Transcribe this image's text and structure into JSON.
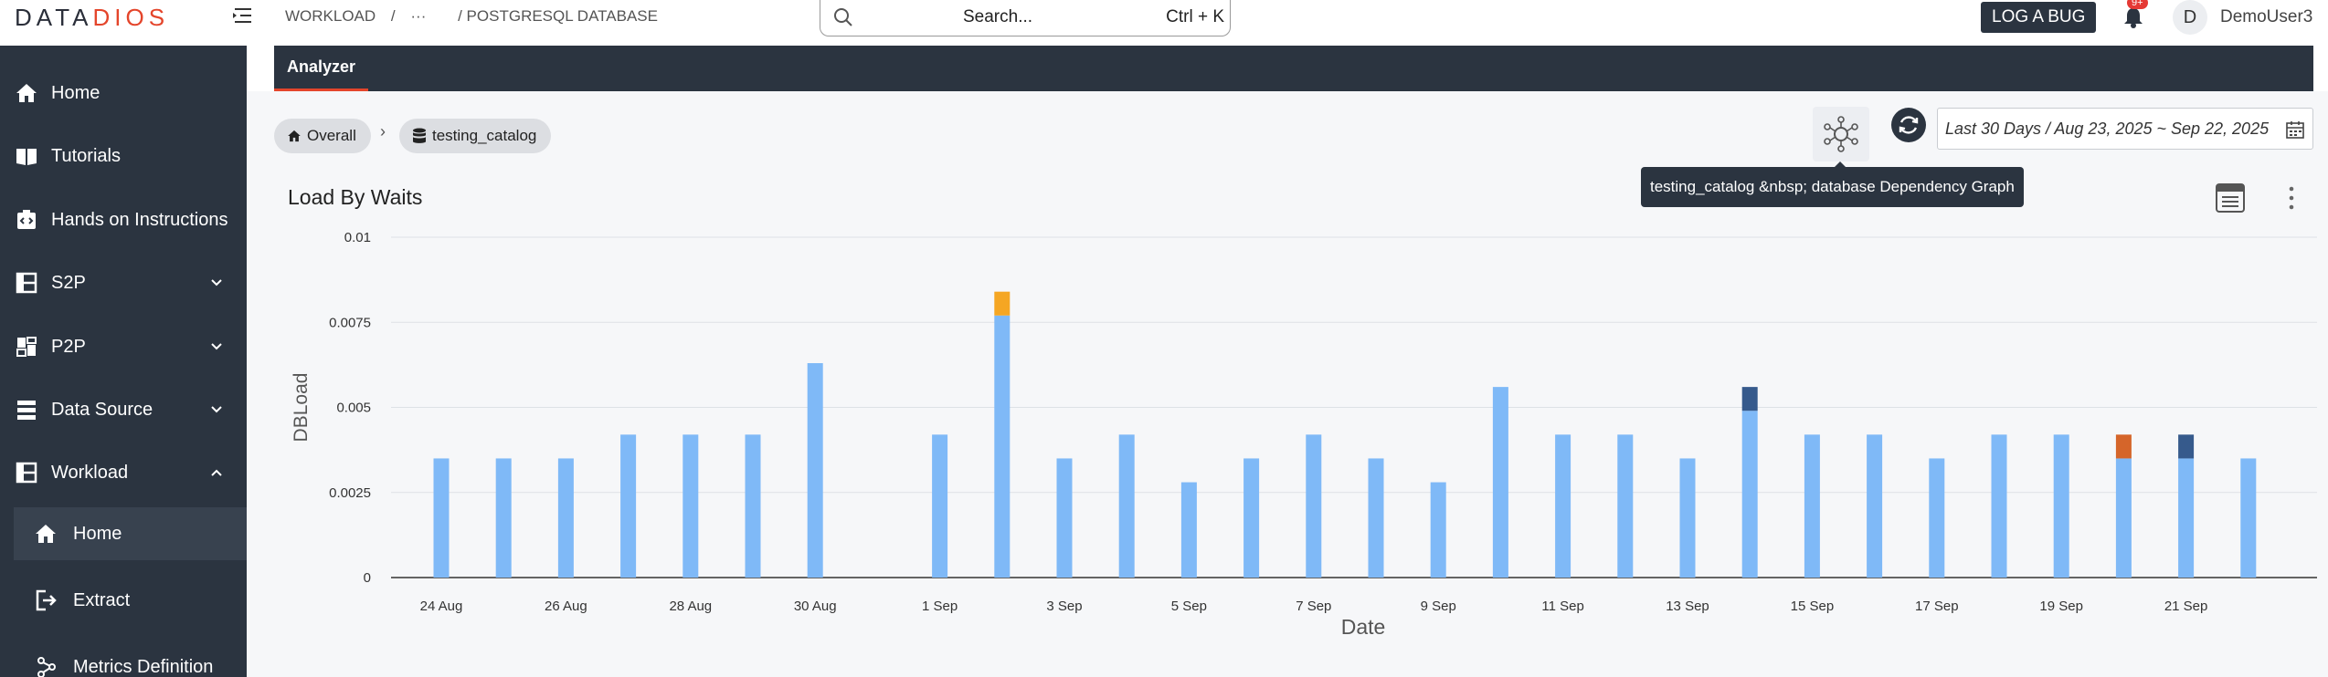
{
  "app": {
    "logo_part1": "DATA",
    "logo_part2": "DIOS",
    "breadcrumb": [
      "WORKLOAD",
      "/",
      "···",
      "/ POSTGRESQL DATABASE"
    ],
    "search_placeholder": "Search...",
    "search_shortcut": "Ctrl + K",
    "log_bug_label": "LOG A BUG",
    "notification_count": "9+",
    "avatar_initial": "D",
    "username": "DemoUser3"
  },
  "sidebar": {
    "items": [
      {
        "label": "Home",
        "icon": "home-icon"
      },
      {
        "label": "Tutorials",
        "icon": "book-icon"
      },
      {
        "label": "Hands on Instructions",
        "icon": "instructions-icon"
      },
      {
        "label": "S2P",
        "icon": "layout-icon",
        "expandable": true
      },
      {
        "label": "P2P",
        "icon": "dashboard-icon",
        "expandable": true
      },
      {
        "label": "Data Source",
        "icon": "server-icon",
        "expandable": true
      },
      {
        "label": "Workload",
        "icon": "layout-icon",
        "expandable": true,
        "expanded": true
      }
    ],
    "sub_items": [
      {
        "label": "Home",
        "icon": "home-icon",
        "active": true
      },
      {
        "label": "Extract",
        "icon": "extract-icon"
      },
      {
        "label": "Metrics Definition",
        "icon": "metrics-icon"
      }
    ]
  },
  "main": {
    "tab_label": "Analyzer",
    "chip_overall": "Overall",
    "chip_separator": "›",
    "chip_catalog": "testing_catalog",
    "date_range": "Last 30 Days / Aug 23, 2025 ~ Sep 22, 2025",
    "tooltip": "testing_catalog &nbsp; database Dependency Graph",
    "panel_title": "Load By Waits"
  },
  "colors": {
    "sidebar_bg": "#2b3440",
    "accent": "#e4452b",
    "bar_main": "#7fb9f7",
    "bar_orange": "#f5a623",
    "bar_navy": "#365a8c",
    "bar_rust": "#d5652a"
  },
  "chart_data": {
    "type": "bar",
    "stacked": true,
    "title": "",
    "xlabel": "Date",
    "ylabel": "DBLoad",
    "ylim": [
      0,
      0.01
    ],
    "yticks": [
      "0",
      "0.0025",
      "0.005",
      "0.0075",
      "0.01"
    ],
    "grid": true,
    "categories": [
      "24 Aug",
      "25 Aug",
      "26 Aug",
      "27 Aug",
      "28 Aug",
      "29 Aug",
      "30 Aug",
      "31 Aug",
      "1 Sep",
      "2 Sep",
      "3 Sep",
      "4 Sep",
      "5 Sep",
      "6 Sep",
      "7 Sep",
      "8 Sep",
      "9 Sep",
      "10 Sep",
      "11 Sep",
      "12 Sep",
      "13 Sep",
      "14 Sep",
      "15 Sep",
      "16 Sep",
      "17 Sep",
      "18 Sep",
      "19 Sep",
      "20 Sep",
      "21 Sep",
      "22 Sep"
    ],
    "xtick_labels": [
      "24 Aug",
      "",
      "26 Aug",
      "",
      "28 Aug",
      "",
      "30 Aug",
      "",
      "1 Sep",
      "",
      "3 Sep",
      "",
      "5 Sep",
      "",
      "7 Sep",
      "",
      "9 Sep",
      "",
      "11 Sep",
      "",
      "13 Sep",
      "",
      "15 Sep",
      "",
      "17 Sep",
      "",
      "19 Sep",
      "",
      "21 Sep",
      ""
    ],
    "series": [
      {
        "color": "#7fb9f7",
        "values": [
          0.0035,
          0.0035,
          0.0035,
          0.0042,
          0.0042,
          0.0042,
          0.0063,
          0,
          0.0042,
          0.0077,
          0.0035,
          0.0042,
          0.0028,
          0.0035,
          0.0042,
          0.0035,
          0.0028,
          0.0056,
          0.0042,
          0.0042,
          0.0035,
          0.0049,
          0.0042,
          0.0042,
          0.0035,
          0.0042,
          0.0042,
          0.0035,
          0.0035,
          0.0035
        ]
      },
      {
        "color": "#f5a623",
        "values": [
          0,
          0,
          0,
          0,
          0,
          0,
          0,
          0,
          0,
          0.0007,
          0,
          0,
          0,
          0,
          0,
          0,
          0,
          0,
          0,
          0,
          0,
          0,
          0,
          0,
          0,
          0,
          0,
          0,
          0,
          0
        ]
      },
      {
        "color": "#365a8c",
        "values": [
          0,
          0,
          0,
          0,
          0,
          0,
          0,
          0,
          0,
          0,
          0,
          0,
          0,
          0,
          0,
          0,
          0,
          0,
          0,
          0,
          0,
          0.0007,
          0,
          0,
          0,
          0,
          0,
          0,
          0.0007,
          0
        ]
      },
      {
        "color": "#d5652a",
        "values": [
          0,
          0,
          0,
          0,
          0,
          0,
          0,
          0,
          0,
          0,
          0,
          0,
          0,
          0,
          0,
          0,
          0,
          0,
          0,
          0,
          0,
          0,
          0,
          0,
          0,
          0,
          0,
          0.0007,
          0,
          0
        ]
      }
    ]
  }
}
